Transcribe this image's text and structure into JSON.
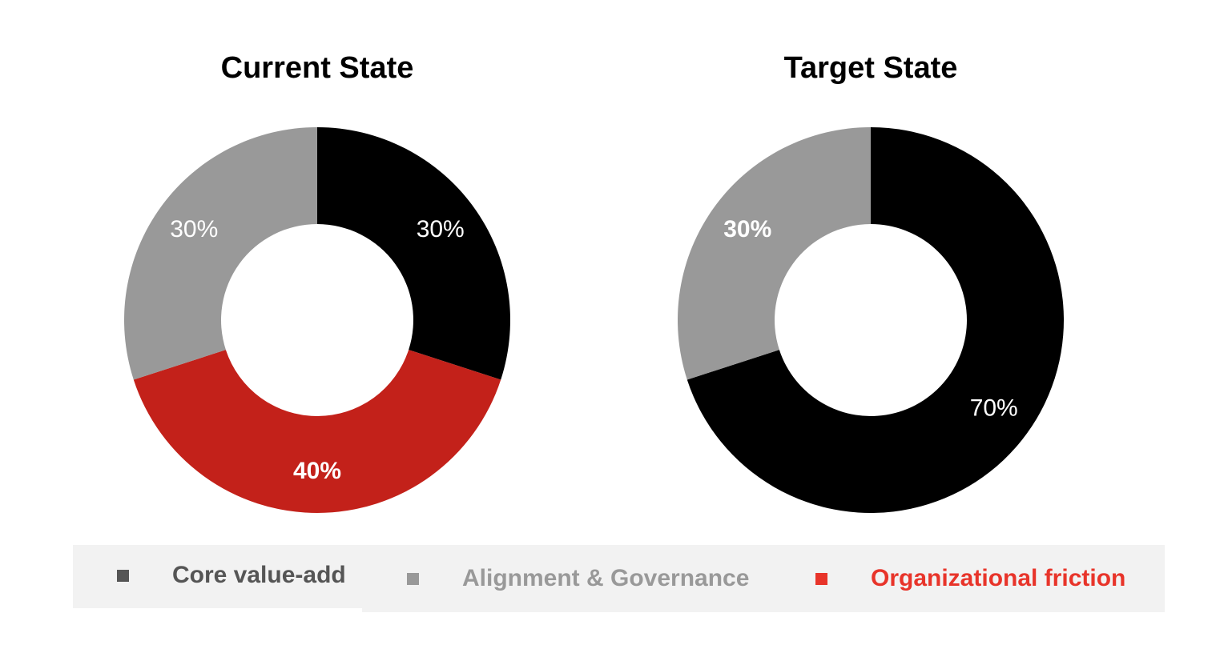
{
  "chart_data": [
    {
      "type": "pie",
      "title": "Current State",
      "donut": true,
      "slices": [
        {
          "category": "Core value-add",
          "value": 30,
          "label": "30%",
          "color": "#000000",
          "bold": false
        },
        {
          "category": "Organizational friction",
          "value": 40,
          "label": "40%",
          "color": "#c3211a",
          "bold": true
        },
        {
          "category": "Alignment & Governance",
          "value": 30,
          "label": "30%",
          "color": "#999999",
          "bold": false
        }
      ]
    },
    {
      "type": "pie",
      "title": "Target State",
      "donut": true,
      "slices": [
        {
          "category": "Core value-add",
          "value": 70,
          "label": "70%",
          "color": "#000000",
          "bold": false
        },
        {
          "category": "Alignment & Governance",
          "value": 30,
          "label": "30%",
          "color": "#999999",
          "bold": true
        }
      ]
    }
  ],
  "legend": {
    "placement": "bottom",
    "items": [
      {
        "label": "Core value-add",
        "marker": "■",
        "color": "#555555"
      },
      {
        "label": "Alignment & Governance",
        "marker": "■",
        "color": "#999999"
      },
      {
        "label": "Organizational friction",
        "marker": "■",
        "color": "#e8342a"
      }
    ]
  }
}
